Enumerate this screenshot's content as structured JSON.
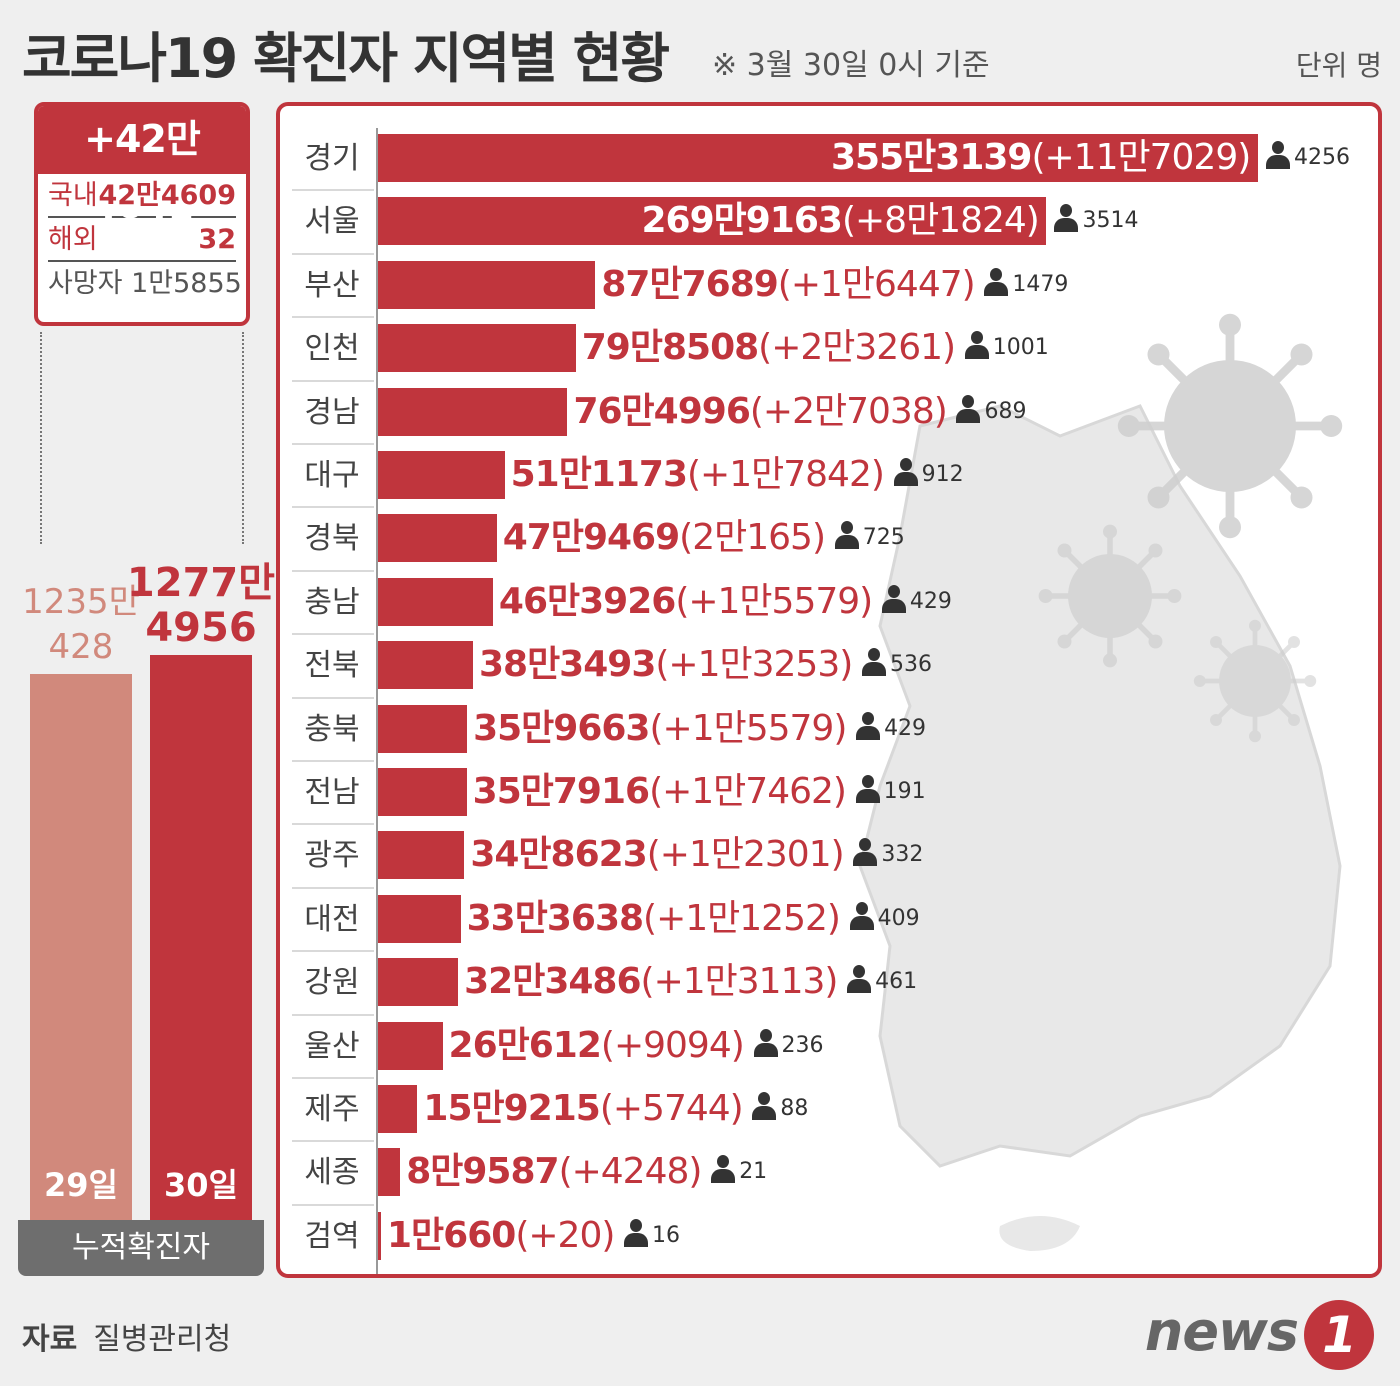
{
  "header": {
    "title": "코로나19 확진자 지역별 현황",
    "subtitle": "※ 3월 30일 0시 기준",
    "unit": "단위 명"
  },
  "summary": {
    "daily_total": "+42만4641",
    "domestic_label": "국내",
    "domestic_value": "42만4609",
    "overseas_label": "해외",
    "overseas_value": "32",
    "deaths_text": "사망자 1만5855"
  },
  "cumulative": {
    "prev": {
      "label_line1": "1235만",
      "label_line2": "428",
      "day": "29일",
      "value": 12350428
    },
    "curr": {
      "label_line1": "1277만",
      "label_line2": "4956",
      "day": "30일",
      "value": 12774956
    },
    "footer": "누적확진자"
  },
  "chart_data": {
    "type": "bar",
    "orientation": "horizontal",
    "categories": [
      "경기",
      "서울",
      "부산",
      "인천",
      "경남",
      "대구",
      "경북",
      "충남",
      "전북",
      "충북",
      "전남",
      "광주",
      "대전",
      "강원",
      "울산",
      "제주",
      "세종",
      "검역"
    ],
    "values": [
      3553139,
      2699163,
      877689,
      798508,
      764996,
      511173,
      479469,
      463926,
      383493,
      359663,
      357916,
      348623,
      333638,
      323486,
      260612,
      159215,
      89587,
      10660
    ],
    "value_labels": [
      "355만3139",
      "269만9163",
      "87만7689",
      "79만8508",
      "76만4996",
      "51만1173",
      "47만9469",
      "46만3926",
      "38만3493",
      "35만9663",
      "35만7916",
      "34만8623",
      "33만3638",
      "32만3486",
      "26만612",
      "15만9215",
      "8만9587",
      "1만660"
    ],
    "increase_labels": [
      "(+11만7029)",
      "(+8만1824)",
      "(+1만6447)",
      "(+2만3261)",
      "(+2만7038)",
      "(+1만7842)",
      "(2만165)",
      "(+1만5579)",
      "(+1만3253)",
      "(+1만5579)",
      "(+1만7462)",
      "(+1만2301)",
      "(+1만1252)",
      "(+1만3113)",
      "(+9094)",
      "(+5744)",
      "(+4248)",
      "(+20)"
    ],
    "deaths": [
      "4256",
      "3514",
      "1479",
      "1001",
      "689",
      "912",
      "725",
      "429",
      "536",
      "429",
      "191",
      "332",
      "409",
      "461",
      "236",
      "88",
      "21",
      "16"
    ],
    "bar_color": "#c0353d"
  },
  "footer": {
    "source_label": "자료",
    "source_value": "질병관리청",
    "logo_text": "news",
    "logo_mark": "1"
  }
}
